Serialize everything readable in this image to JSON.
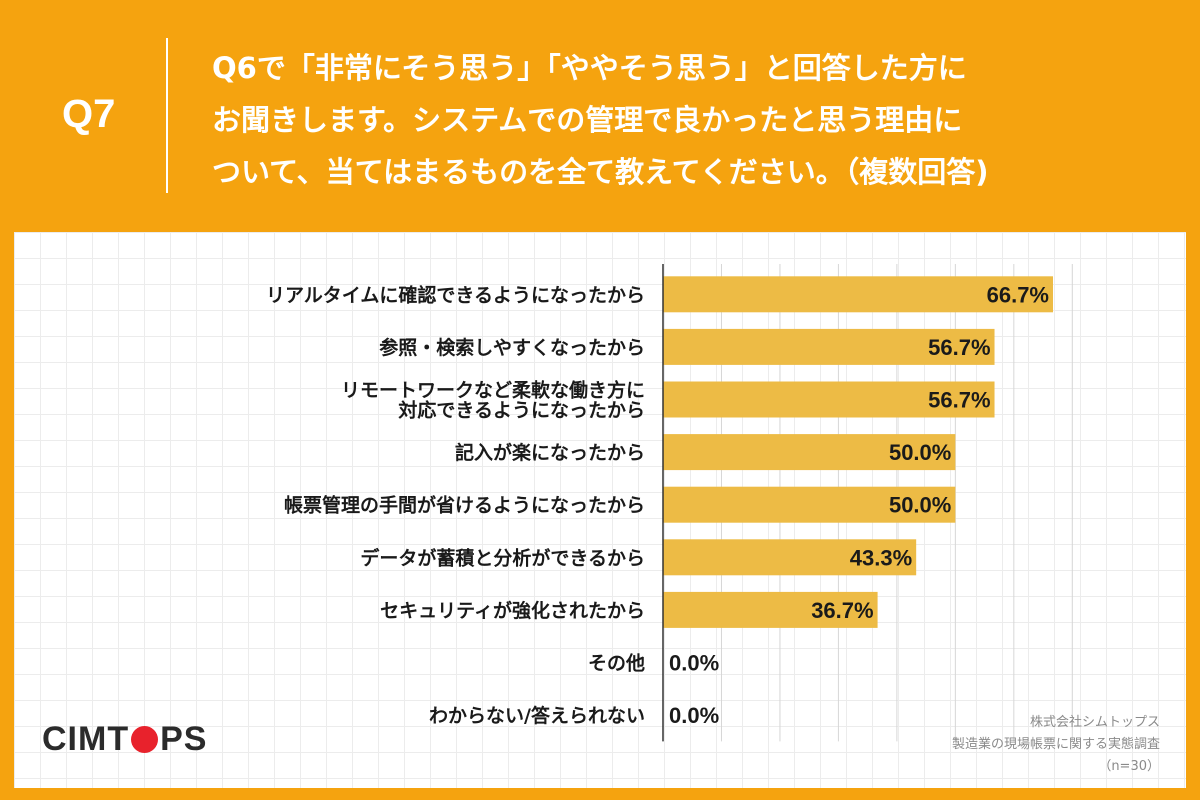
{
  "header": {
    "qnum": "Q7",
    "question_lines": [
      "Q6で「非常にそう思う」「ややそう思う」と回答した方に",
      "お聞きします。システムでの管理で良かったと思う理由に",
      "ついて、当てはまるものを全て教えてください。（複数回答)"
    ]
  },
  "colors": {
    "background": "#F5A30F",
    "bar": "#EDBB45",
    "logo_accent": "#E8222C"
  },
  "chart_data": {
    "type": "bar",
    "orientation": "horizontal",
    "categories": [
      [
        "リアルタイムに確認できるようになったから"
      ],
      [
        "参照・検索しやすくなったから"
      ],
      [
        "リモートワークなど柔軟な働き方に",
        "対応できるようになったから"
      ],
      [
        "記入が楽になったから"
      ],
      [
        "帳票管理の手間が省けるようになったから"
      ],
      [
        "データが蓄積と分析ができるから"
      ],
      [
        "セキュリティが強化されたから"
      ],
      [
        "その他"
      ],
      [
        "わからない/答えられない"
      ]
    ],
    "values": [
      66.7,
      56.7,
      56.7,
      50.0,
      50.0,
      43.3,
      36.7,
      0.0,
      0.0
    ],
    "value_labels": [
      "66.7%",
      "56.7%",
      "56.7%",
      "50.0%",
      "50.0%",
      "43.3%",
      "36.7%",
      "0.0%",
      "0.0%"
    ],
    "xlim": [
      0,
      70
    ],
    "grid": true
  },
  "footer": {
    "logo": "CIMTOPS",
    "source_lines": [
      "株式会社シムトップス",
      "製造業の現場帳票に関する実態調査",
      "（n=30）"
    ]
  }
}
